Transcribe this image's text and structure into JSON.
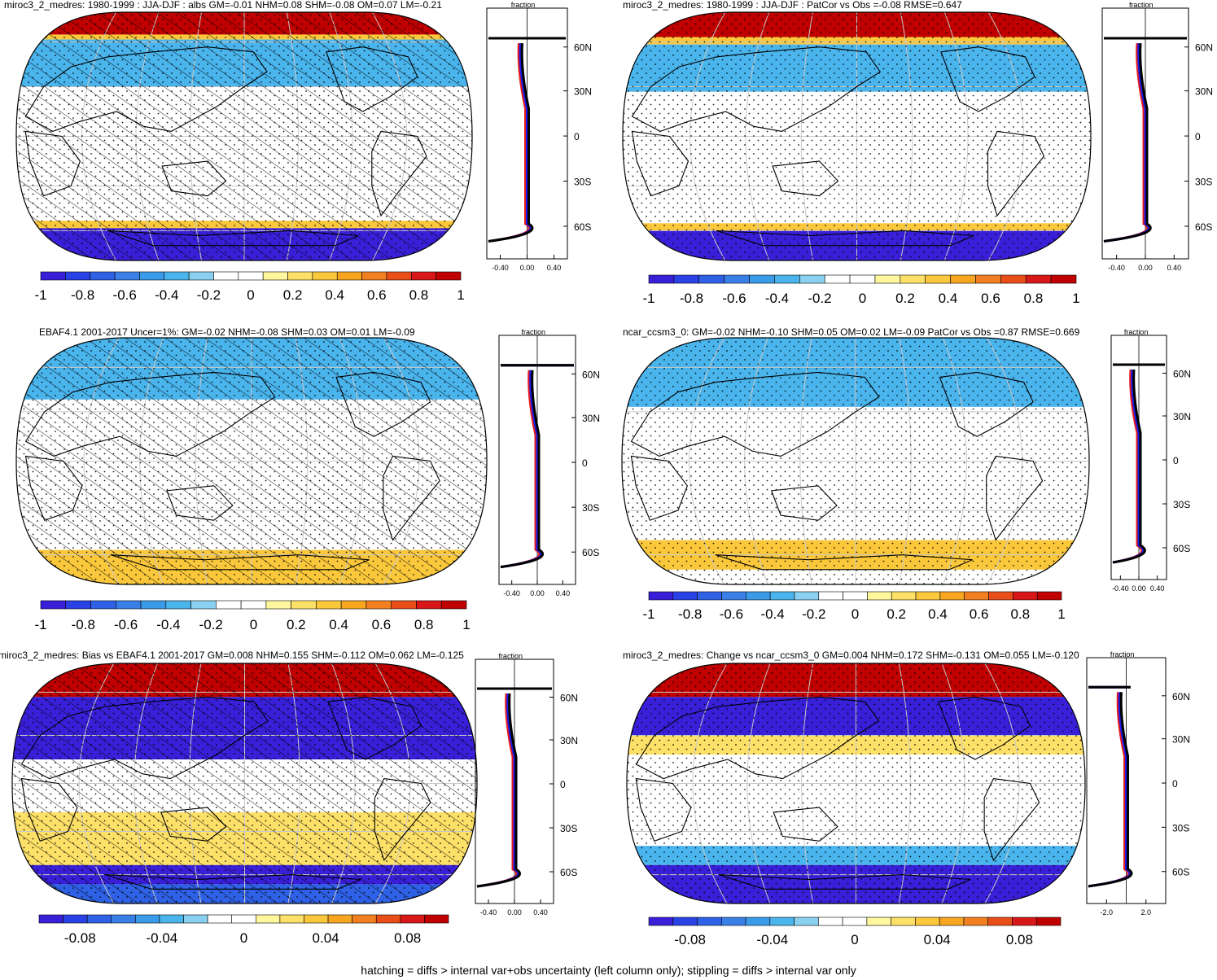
{
  "footer": "hatching = diffs > internal var+obs uncertainty (left column only); stippling = diffs > internal var only",
  "colors": {
    "scale": [
      "#3a1fd9",
      "#2a41e6",
      "#2f61e6",
      "#3a7fe8",
      "#3a9be8",
      "#4ab4ec",
      "#8ad0f0",
      "#ffffff",
      "#ffffff",
      "#fff79e",
      "#fde068",
      "#fbc83c",
      "#f8a520",
      "#f28020",
      "#ea4e18",
      "#d81818",
      "#c00000"
    ],
    "ocean_white": "#ffffff",
    "line_red": "#e81c1c",
    "line_blue": "#1a1ae8",
    "line_black": "#000000",
    "grid": "#c8c8c8"
  },
  "chart_data": [
    {
      "type": "heatmap",
      "map_projection": "robinson",
      "title": "miroc3_2_medres: 1980-1999 : JJA-DJF : albs GM=-0.01 NHM=0.08 SHM=-0.08 OM=0.07 LM=-0.21",
      "variable": "albs",
      "season": "JJA-DJF",
      "colorbar_ticks": [
        "-1",
        "-0.8",
        "-0.6",
        "-0.4",
        "-0.2",
        "0",
        "0.2",
        "0.4",
        "0.6",
        "0.8",
        "1"
      ],
      "colorbar_range": [
        -1,
        1
      ],
      "overlay": "hatching + stippling",
      "zonal_profile": {
        "xlabel": "fraction",
        "x_ticks": [
          "-0.40",
          "0.00",
          "0.40"
        ],
        "y_ticks": [
          "60N",
          "30N",
          "0",
          "30S",
          "60S"
        ],
        "xlim": [
          -0.6,
          0.6
        ]
      }
    },
    {
      "type": "heatmap",
      "map_projection": "robinson",
      "title": "miroc3_2_medres: 1980-1999 : JJA-DJF : PatCor vs Obs =-0.08 RMSE=0.647",
      "pattern_correlation": -0.08,
      "rmse": 0.647,
      "colorbar_ticks": [
        "-1",
        "-0.8",
        "-0.6",
        "-0.4",
        "-0.2",
        "0",
        "0.2",
        "0.4",
        "0.6",
        "0.8",
        "1"
      ],
      "colorbar_range": [
        -1,
        1
      ],
      "overlay": "stippling",
      "zonal_profile": {
        "xlabel": "fraction",
        "x_ticks": [
          "-0.40",
          "0.00",
          "0.40"
        ],
        "y_ticks": [
          "60N",
          "30N",
          "0",
          "30S",
          "60S"
        ],
        "xlim": [
          -0.6,
          0.6
        ]
      }
    },
    {
      "type": "heatmap",
      "map_projection": "robinson",
      "title": "EBAF4.1 2001-2017 Uncer=1%: GM=-0.02 NHM=-0.08 SHM=0.03 OM=0.01 LM=-0.09",
      "colorbar_ticks": [
        "-1",
        "-0.8",
        "-0.6",
        "-0.4",
        "-0.2",
        "0",
        "0.2",
        "0.4",
        "0.6",
        "0.8",
        "1"
      ],
      "colorbar_range": [
        -1,
        1
      ],
      "overlay": "hatching + stippling",
      "zonal_profile": {
        "xlabel": "fraction",
        "x_ticks": [
          "-0.40",
          "0.00",
          "0.40"
        ],
        "y_ticks": [
          "60N",
          "30N",
          "0",
          "30S",
          "60S"
        ],
        "xlim": [
          -0.6,
          0.6
        ]
      }
    },
    {
      "type": "heatmap",
      "map_projection": "robinson",
      "title": "ncar_ccsm3_0: GM=-0.02 NHM=-0.10 SHM=0.05 OM=0.02 LM=-0.09 PatCor vs Obs =0.87 RMSE=0.669",
      "pattern_correlation": 0.87,
      "rmse": 0.669,
      "colorbar_ticks": [
        "-1",
        "-0.8",
        "-0.6",
        "-0.4",
        "-0.2",
        "0",
        "0.2",
        "0.4",
        "0.6",
        "0.8",
        "1"
      ],
      "colorbar_range": [
        -1,
        1
      ],
      "overlay": "stippling",
      "zonal_profile": {
        "xlabel": "fraction",
        "x_ticks": [
          "-0.40",
          "0.00",
          "0.40"
        ],
        "y_ticks": [
          "60N",
          "30N",
          "0",
          "30S",
          "60S"
        ],
        "xlim": [
          -0.6,
          0.6
        ]
      }
    },
    {
      "type": "heatmap",
      "map_projection": "robinson",
      "title": "miroc3_2_medres: Bias vs EBAF4.1 2001-2017 GM=0.008 NHM=0.155 SHM=-0.112 OM=0.062 LM=-0.125",
      "colorbar_ticks": [
        "-0.08",
        "-0.04",
        "0",
        "0.04",
        "0.08"
      ],
      "colorbar_range": [
        -0.1,
        0.1
      ],
      "overlay": "hatching + stippling",
      "zonal_profile": {
        "xlabel": "fraction",
        "x_ticks": [
          "-0.40",
          "0.00",
          "0.40"
        ],
        "y_ticks": [
          "60N",
          "30N",
          "0",
          "30S",
          "60S"
        ],
        "xlim": [
          -0.6,
          0.6
        ]
      }
    },
    {
      "type": "heatmap",
      "map_projection": "robinson",
      "title": "miroc3_2_medres: Change vs ncar_ccsm3_0 GM=0.004 NHM=0.172 SHM=-0.131 OM=0.055 LM=-0.120",
      "colorbar_ticks": [
        "-0.08",
        "-0.04",
        "0",
        "0.04",
        "0.08"
      ],
      "colorbar_range": [
        -0.1,
        0.1
      ],
      "overlay": "stippling",
      "zonal_profile": {
        "xlabel": "fraction",
        "x_ticks": [
          "-2.0",
          "2.0"
        ],
        "y_ticks": [
          "60N",
          "30N",
          "0",
          "30S",
          "60S"
        ],
        "xlim": [
          -4,
          4
        ]
      }
    }
  ]
}
